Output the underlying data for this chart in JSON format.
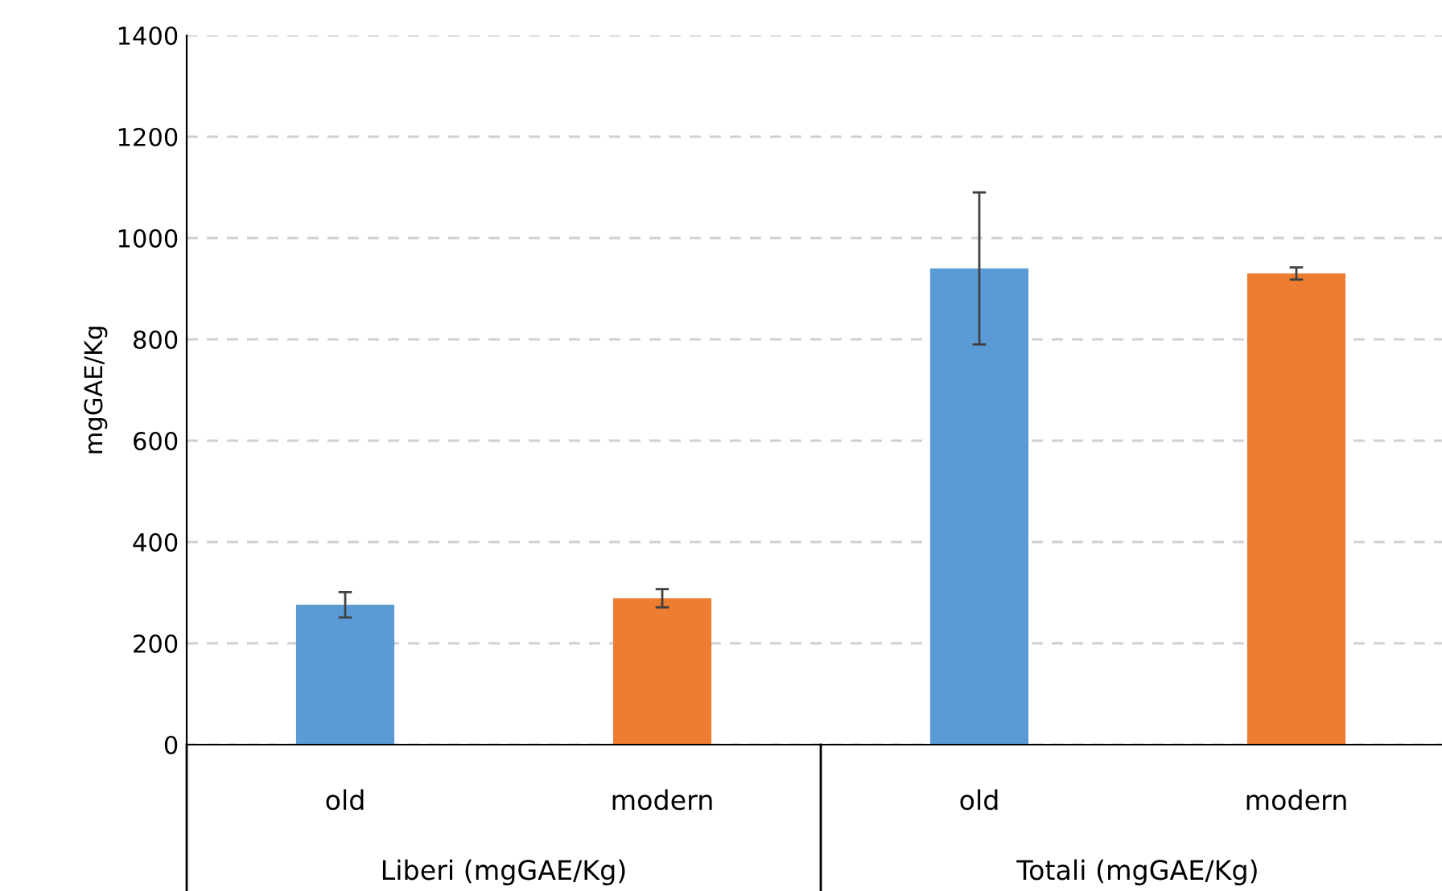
{
  "chart_data": {
    "type": "bar",
    "ylabel": "mgGAE/Kg",
    "categories": [
      "old",
      "modern",
      "old",
      "modern"
    ],
    "values": [
      276,
      289,
      940,
      930
    ],
    "colors": [
      "#5b9bd5",
      "#ed7d31",
      "#5b9bd5",
      "#ed7d31"
    ],
    "errors": [
      25,
      18,
      150,
      12
    ],
    "ylim": [
      0,
      1400
    ],
    "yticks": [
      0,
      200,
      400,
      600,
      800,
      1000,
      1200,
      1400
    ],
    "grid": "y",
    "annotations": [
      "Liberi (mgGAE/Kg)",
      "Totali (mgGAE/Kg)"
    ]
  }
}
